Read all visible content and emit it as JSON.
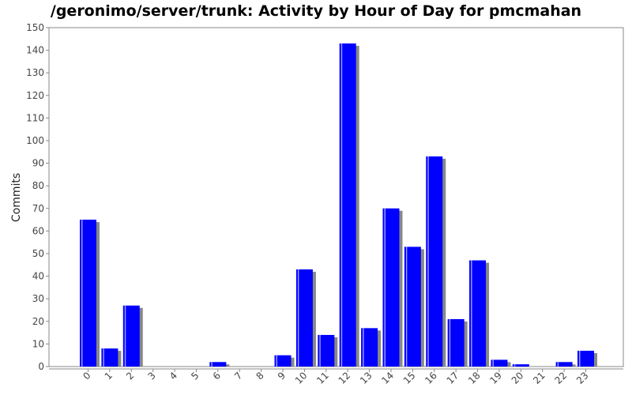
{
  "chart_data": {
    "type": "bar",
    "title": "/geronimo/server/trunk: Activity by Hour of Day for pmcmahan",
    "xlabel": "",
    "ylabel": "Commits",
    "ylim": [
      0,
      150
    ],
    "ytick_step": 10,
    "grid": false,
    "categories": [
      "0",
      "1",
      "2",
      "3",
      "4",
      "5",
      "6",
      "7",
      "8",
      "9",
      "10",
      "11",
      "12",
      "13",
      "14",
      "15",
      "16",
      "17",
      "18",
      "19",
      "20",
      "21",
      "22",
      "23"
    ],
    "values": [
      65,
      8,
      27,
      0,
      0,
      0,
      2,
      0,
      0,
      5,
      43,
      14,
      143,
      17,
      70,
      53,
      93,
      21,
      47,
      3,
      1,
      0,
      2,
      7
    ],
    "bar_color": "#0000ff",
    "shadow_color": "#888888"
  }
}
